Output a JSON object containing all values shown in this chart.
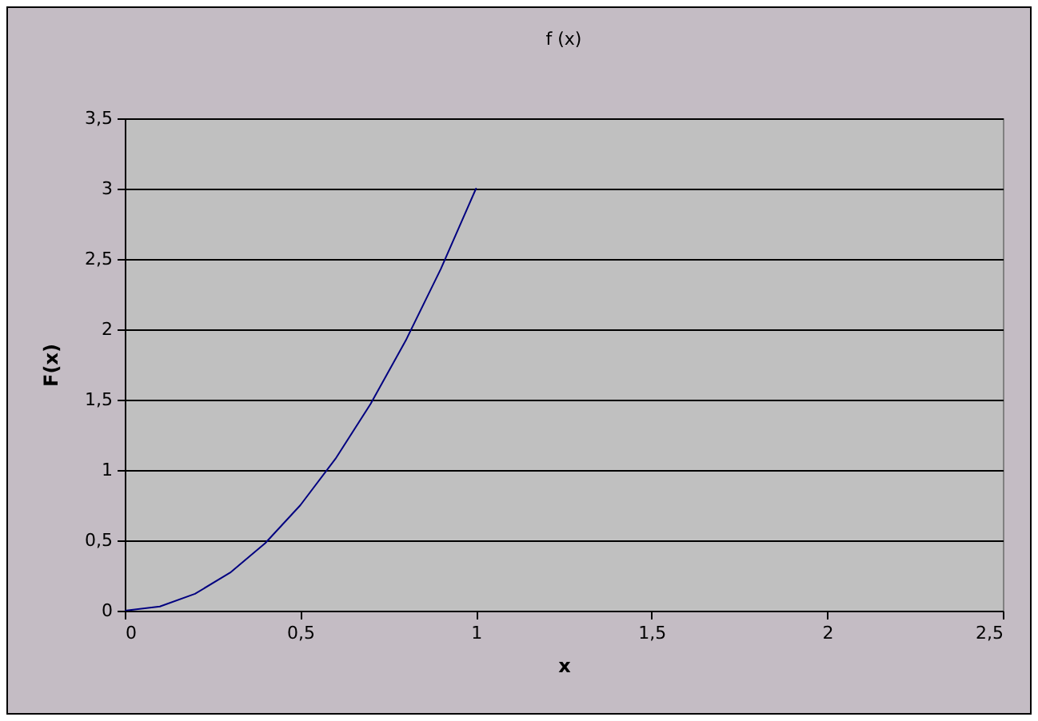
{
  "chart_data": {
    "type": "line",
    "title": "f (x)",
    "xlabel": "x",
    "ylabel": "F(x)",
    "x": [
      0,
      0.1,
      0.2,
      0.3,
      0.4,
      0.5,
      0.6,
      0.7,
      0.8,
      0.9,
      1
    ],
    "series": [
      {
        "color": "#000080",
        "values": [
          0,
          0.03,
          0.12,
          0.27,
          0.48,
          0.75,
          1.08,
          1.47,
          1.92,
          2.43,
          3
        ]
      }
    ],
    "xlim": [
      0,
      2.5
    ],
    "ylim": [
      0,
      3.5
    ],
    "xticks": [
      0,
      {
        "value": 0.5,
        "label": "0,5"
      },
      1,
      {
        "value": 1.5,
        "label": "1,5"
      },
      2,
      {
        "value": 2.5,
        "label": "2,5"
      }
    ],
    "yticks": [
      0,
      {
        "value": 0.5,
        "label": "0,5"
      },
      1,
      {
        "value": 1.5,
        "label": "1,5"
      },
      2,
      {
        "value": 2.5,
        "label": "2,5"
      },
      3,
      {
        "value": 3.5,
        "label": "3,5"
      }
    ],
    "grid": "y",
    "legend": false,
    "marker": "none",
    "line_style": "solid"
  }
}
